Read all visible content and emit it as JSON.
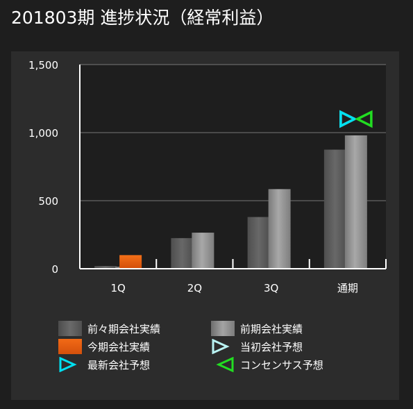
{
  "page": {
    "title": "201803期 進捗状況（経常利益）"
  },
  "colors": {
    "background": "#1e1e1e",
    "panel": "#2c2c2c",
    "plot_area": "#1e1e1e",
    "grid": "#777777",
    "prev2_actual": "#5a5a5a",
    "prev_actual": "#8e8e8e",
    "current_actual": "#e85e10",
    "initial_forecast": "#b9f2f2",
    "latest_forecast": "#00e0f0",
    "consensus": "#22dd22"
  },
  "legend": {
    "prev2_actual": "前々期会社実績",
    "prev_actual": "前期会社実績",
    "current_actual": "今期会社実績",
    "initial_forecast": "当初会社予想",
    "latest_forecast": "最新会社予想",
    "consensus": "コンセンサス予想"
  },
  "chart_data": {
    "type": "bar",
    "categories": [
      "1Q",
      "2Q",
      "3Q",
      "通期"
    ],
    "ylim": [
      0,
      1500
    ],
    "yticks": [
      0,
      500,
      1000,
      1500
    ],
    "ytick_labels": [
      "0",
      "500",
      "1,000",
      "1,500"
    ],
    "grid": true,
    "series": [
      {
        "name": "前々期会社実績",
        "key": "prev2_actual",
        "values": [
          20,
          225,
          380,
          875
        ]
      },
      {
        "name": "前期会社実績",
        "key": "prev_actual",
        "values": [
          15,
          265,
          585,
          980
        ]
      },
      {
        "name": "今期会社実績",
        "key": "current_actual",
        "values": [
          100,
          null,
          null,
          null
        ]
      }
    ],
    "markers": [
      {
        "name": "当初会社予想",
        "key": "initial_forecast",
        "category": "通期",
        "value": 1100
      },
      {
        "name": "最新会社予想",
        "key": "latest_forecast",
        "category": "通期",
        "value": 1100
      },
      {
        "name": "コンセンサス予想",
        "key": "consensus",
        "category": "通期",
        "value": 1100
      }
    ]
  }
}
